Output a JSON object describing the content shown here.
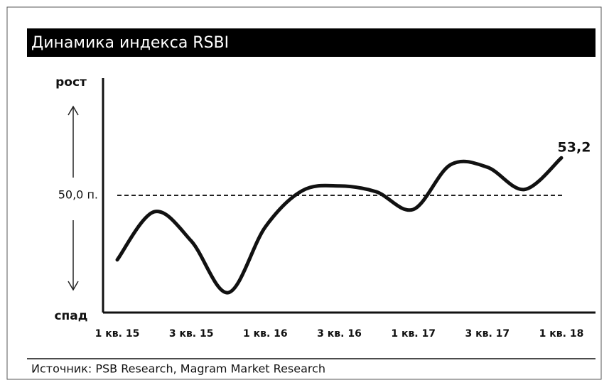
{
  "chart_data": {
    "type": "line",
    "title": "Динамика индекса RSBI",
    "y_top_label": "рост",
    "y_bottom_label": "спад",
    "source": "Источник: PSB Research, Magram Market Research",
    "categories": [
      "1 кв. 15",
      null,
      "3 кв. 15",
      null,
      "1 кв. 16",
      null,
      "3 кв. 16",
      null,
      "1 кв. 17",
      null,
      "3 кв. 17",
      null,
      "1 кв. 18"
    ],
    "series": [
      {
        "name": "RSBI",
        "color": "#111111",
        "values": [
          44.5,
          48.6,
          46.1,
          41.7,
          47.3,
          50.4,
          50.8,
          50.3,
          48.8,
          52.6,
          52.4,
          50.5,
          53.2
        ],
        "value_labels": [
          null,
          null,
          null,
          null,
          null,
          null,
          null,
          null,
          null,
          null,
          null,
          null,
          "53,2"
        ]
      }
    ],
    "ylim": [
      40,
      60
    ],
    "yticks": [
      {
        "value": 50,
        "label": "50,0 п."
      }
    ],
    "grid": true
  }
}
